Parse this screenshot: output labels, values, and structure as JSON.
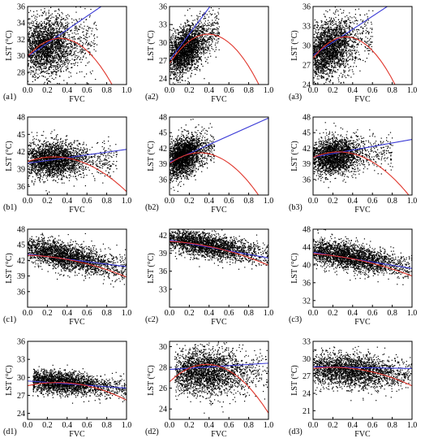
{
  "colors": {
    "scatter": "#000000",
    "linear_fit": "#3a3ad6",
    "quadratic_fit": "#e0342a",
    "axes": "#000000"
  },
  "chart_data": [
    {
      "id": "a1",
      "type": "scatter",
      "panel_label": "(a1)",
      "xlabel": "FVC",
      "ylabel": "LST (°C)",
      "xlim": [
        0,
        1
      ],
      "ylim": [
        26.5,
        36
      ],
      "xticks": [
        0.0,
        0.2,
        0.4,
        0.6,
        0.8,
        1.0
      ],
      "yticks": [
        28,
        30,
        32,
        34,
        36
      ],
      "cloud": {
        "x_peak": 0.18,
        "x_spread": 0.14,
        "center_y": 31.2,
        "slope_y": 1.0,
        "spread_y": 1.8,
        "x_min": 0.0,
        "x_max": 0.7
      },
      "linear_fit": {
        "intercept": 29.9,
        "slope": 8.2
      },
      "quadratic_fit": {
        "c0": 29.9,
        "c1": 13.5,
        "c2": -20.5
      }
    },
    {
      "id": "a2",
      "type": "scatter",
      "panel_label": "(a2)",
      "xlabel": "FVC",
      "ylabel": "LST (°C)",
      "xlim": [
        0,
        1
      ],
      "ylim": [
        23,
        36
      ],
      "xticks": [
        0.0,
        0.2,
        0.4,
        0.6,
        0.8,
        1.0
      ],
      "yticks": [
        24,
        27,
        30,
        33,
        36
      ],
      "cloud": {
        "x_peak": 0.15,
        "x_spread": 0.1,
        "center_y": 28.8,
        "slope_y": 10.0,
        "spread_y": 1.9,
        "x_min": 0.0,
        "x_max": 0.5
      },
      "linear_fit": {
        "intercept": 27.0,
        "slope": 22.0
      },
      "quadratic_fit": {
        "c0": 26.5,
        "c1": 25.0,
        "c2": -32.0
      }
    },
    {
      "id": "a3",
      "type": "scatter",
      "panel_label": "(a3)",
      "xlabel": "FVC",
      "ylabel": "LST (°C)",
      "xlim": [
        0,
        1
      ],
      "ylim": [
        24,
        36
      ],
      "xticks": [
        0.0,
        0.2,
        0.4,
        0.6,
        0.8,
        1.0
      ],
      "yticks": [
        24,
        27,
        30,
        33,
        36
      ],
      "cloud": {
        "x_peak": 0.15,
        "x_spread": 0.12,
        "center_y": 29.5,
        "slope_y": 5.0,
        "spread_y": 2.1,
        "x_min": 0.0,
        "x_max": 0.6
      },
      "linear_fit": {
        "intercept": 28.5,
        "slope": 10.0
      },
      "quadratic_fit": {
        "c0": 28.0,
        "c1": 20.0,
        "c2": -30.0
      }
    },
    {
      "id": "b1",
      "type": "scatter",
      "panel_label": "(b1)",
      "xlabel": "FVC",
      "ylabel": "LST (°C)",
      "xlim": [
        0,
        1
      ],
      "ylim": [
        34.5,
        48
      ],
      "xticks": [
        0.0,
        0.2,
        0.4,
        0.6,
        0.8,
        1.0
      ],
      "yticks": [
        36,
        39,
        42,
        45,
        48
      ],
      "cloud": {
        "x_peak": 0.25,
        "x_spread": 0.15,
        "center_y": 40.7,
        "slope_y": 0.0,
        "spread_y": 1.5,
        "x_min": 0.0,
        "x_max": 0.9
      },
      "linear_fit": {
        "intercept": 40.0,
        "slope": 2.4
      },
      "quadratic_fit": {
        "c0": 40.3,
        "c1": 6.0,
        "c2": -11.2
      }
    },
    {
      "id": "b2",
      "type": "scatter",
      "panel_label": "(b2)",
      "xlabel": "FVC",
      "ylabel": "LST (°C)",
      "xlim": [
        0,
        1
      ],
      "ylim": [
        33,
        48
      ],
      "xticks": [
        0.0,
        0.2,
        0.4,
        0.6,
        0.8,
        1.0
      ],
      "yticks": [
        36,
        39,
        42,
        45,
        48
      ],
      "cloud": {
        "x_peak": 0.13,
        "x_spread": 0.08,
        "center_y": 40.5,
        "slope_y": 6.0,
        "spread_y": 1.8,
        "x_min": 0.0,
        "x_max": 0.45
      },
      "linear_fit": {
        "intercept": 39.3,
        "slope": 8.5
      },
      "quadratic_fit": {
        "c0": 39.0,
        "c1": 14.0,
        "c2": -23.0
      }
    },
    {
      "id": "b3",
      "type": "scatter",
      "panel_label": "(b3)",
      "xlabel": "FVC",
      "ylabel": "LST (°C)",
      "xlim": [
        0,
        1
      ],
      "ylim": [
        33,
        48
      ],
      "xticks": [
        0.0,
        0.2,
        0.4,
        0.6,
        0.8,
        1.0
      ],
      "yticks": [
        36,
        39,
        42,
        45,
        48
      ],
      "cloud": {
        "x_peak": 0.2,
        "x_spread": 0.13,
        "center_y": 40.6,
        "slope_y": 1.0,
        "spread_y": 1.7,
        "x_min": 0.0,
        "x_max": 0.8
      },
      "linear_fit": {
        "intercept": 40.3,
        "slope": 3.4
      },
      "quadratic_fit": {
        "c0": 40.2,
        "c1": 8.5,
        "c2": -16.5
      }
    },
    {
      "id": "c1",
      "type": "scatter",
      "panel_label": "(c1)",
      "xlabel": "FVC",
      "ylabel": "LST (°C)",
      "xlim": [
        0,
        1
      ],
      "ylim": [
        33,
        48
      ],
      "xticks": [
        0.0,
        0.2,
        0.4,
        0.6,
        0.8,
        1.0
      ],
      "yticks": [
        36,
        39,
        42,
        45,
        48
      ],
      "cloud": {
        "x_peak": 0.35,
        "x_spread": 0.25,
        "center_y": 43.0,
        "slope_y": -4.0,
        "spread_y": 1.3,
        "x_min": 0.0,
        "x_max": 1.0
      },
      "linear_fit": {
        "intercept": 43.2,
        "slope": -2.4
      },
      "quadratic_fit": {
        "c0": 43.0,
        "c1": -0.6,
        "c2": -3.6
      }
    },
    {
      "id": "c2",
      "type": "scatter",
      "panel_label": "(c2)",
      "xlabel": "FVC",
      "ylabel": "LST (°C)",
      "xlim": [
        0,
        1
      ],
      "ylim": [
        30,
        43
      ],
      "xticks": [
        0.0,
        0.2,
        0.4,
        0.6,
        0.8,
        1.0
      ],
      "yticks": [
        33,
        36,
        39,
        42
      ],
      "cloud": {
        "x_peak": 0.35,
        "x_spread": 0.25,
        "center_y": 40.5,
        "slope_y": -3.0,
        "spread_y": 1.0,
        "x_min": 0.0,
        "x_max": 1.0
      },
      "linear_fit": {
        "intercept": 41.2,
        "slope": -3.0
      },
      "quadratic_fit": {
        "c0": 41.0,
        "c1": -1.0,
        "c2": -3.0
      }
    },
    {
      "id": "c3",
      "type": "scatter",
      "panel_label": "(c3)",
      "xlabel": "FVC",
      "ylabel": "LST (°C)",
      "xlim": [
        0,
        1
      ],
      "ylim": [
        30.5,
        48
      ],
      "xticks": [
        0.0,
        0.2,
        0.4,
        0.6,
        0.8,
        1.0
      ],
      "yticks": [
        32,
        36,
        40,
        44,
        48
      ],
      "cloud": {
        "x_peak": 0.35,
        "x_spread": 0.25,
        "center_y": 42.0,
        "slope_y": -4.0,
        "spread_y": 1.5,
        "x_min": 0.0,
        "x_max": 1.0
      },
      "linear_fit": {
        "intercept": 42.8,
        "slope": -3.6
      },
      "quadratic_fit": {
        "c0": 42.5,
        "c1": -1.5,
        "c2": -3.5
      }
    },
    {
      "id": "d1",
      "type": "scatter",
      "panel_label": "(d1)",
      "xlabel": "FVC",
      "ylabel": "LST (°C)",
      "xlim": [
        0,
        1
      ],
      "ylim": [
        23,
        36
      ],
      "xticks": [
        0.0,
        0.2,
        0.4,
        0.6,
        0.8,
        1.0
      ],
      "yticks": [
        24,
        27,
        30,
        33,
        36
      ],
      "cloud": {
        "x_peak": 0.3,
        "x_spread": 0.22,
        "center_y": 29.2,
        "slope_y": -1.5,
        "spread_y": 0.9,
        "x_min": 0.05,
        "x_max": 1.0
      },
      "linear_fit": {
        "intercept": 29.4,
        "slope": -1.2
      },
      "quadratic_fit": {
        "c0": 28.6,
        "c1": 3.6,
        "c2": -6.0
      }
    },
    {
      "id": "d2",
      "type": "scatter",
      "panel_label": "(d2)",
      "xlabel": "FVC",
      "ylabel": "LST (°C)",
      "xlim": [
        0,
        1
      ],
      "ylim": [
        23,
        30.5
      ],
      "xticks": [
        0.0,
        0.2,
        0.4,
        0.6,
        0.8,
        1.0
      ],
      "yticks": [
        24,
        26,
        28,
        30
      ],
      "cloud": {
        "x_peak": 0.35,
        "x_spread": 0.2,
        "center_y": 27.6,
        "slope_y": 0.0,
        "spread_y": 1.1,
        "x_min": 0.05,
        "x_max": 1.0
      },
      "linear_fit": {
        "intercept": 27.8,
        "slope": 0.6
      },
      "quadratic_fit": {
        "c0": 26.6,
        "c1": 9.0,
        "c2": -12.0
      }
    },
    {
      "id": "d3",
      "type": "scatter",
      "panel_label": "(d3)",
      "xlabel": "FVC",
      "ylabel": "LST (°C)",
      "xlim": [
        0,
        1
      ],
      "ylim": [
        19.5,
        33
      ],
      "xticks": [
        0.0,
        0.2,
        0.4,
        0.6,
        0.8,
        1.0
      ],
      "yticks": [
        21,
        24,
        27,
        30,
        33
      ],
      "cloud": {
        "x_peak": 0.35,
        "x_spread": 0.25,
        "center_y": 28.0,
        "slope_y": -1.0,
        "spread_y": 1.4,
        "x_min": 0.0,
        "x_max": 1.0
      },
      "linear_fit": {
        "intercept": 28.6,
        "slope": -0.3
      },
      "quadratic_fit": {
        "c0": 28.3,
        "c1": 2.0,
        "c2": -5.0
      }
    }
  ]
}
